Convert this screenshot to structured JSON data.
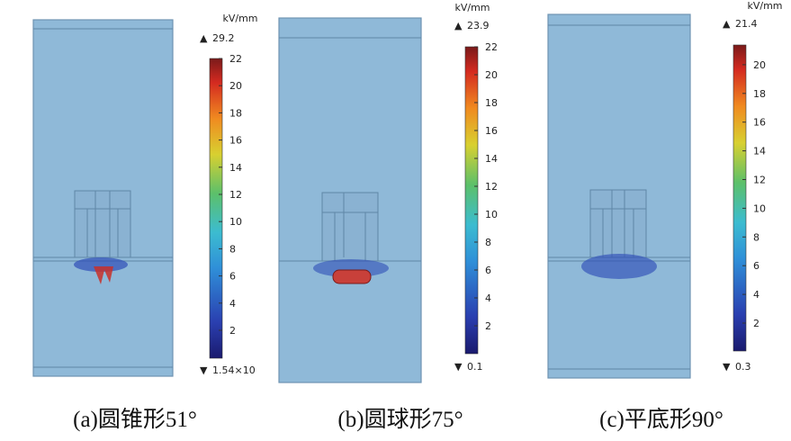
{
  "panels": [
    {
      "unit": "kV/mm",
      "max": 29.2,
      "min": "1.54×10",
      "ticks": [
        2,
        4,
        6,
        8,
        10,
        12,
        14,
        16,
        18,
        20,
        22
      ],
      "caption": "(a)圆锥形51°"
    },
    {
      "unit": "kV/mm",
      "max": 23.9,
      "min": 0.1,
      "ticks": [
        2,
        4,
        6,
        8,
        10,
        12,
        14,
        16,
        18,
        20,
        22
      ],
      "caption": "(b)圆球形75°"
    },
    {
      "unit": "kV/mm",
      "max": 21.4,
      "min": 0.3,
      "ticks": [
        2,
        4,
        6,
        8,
        10,
        12,
        14,
        16,
        18,
        20
      ],
      "caption": "(c)平底形90°"
    }
  ]
}
